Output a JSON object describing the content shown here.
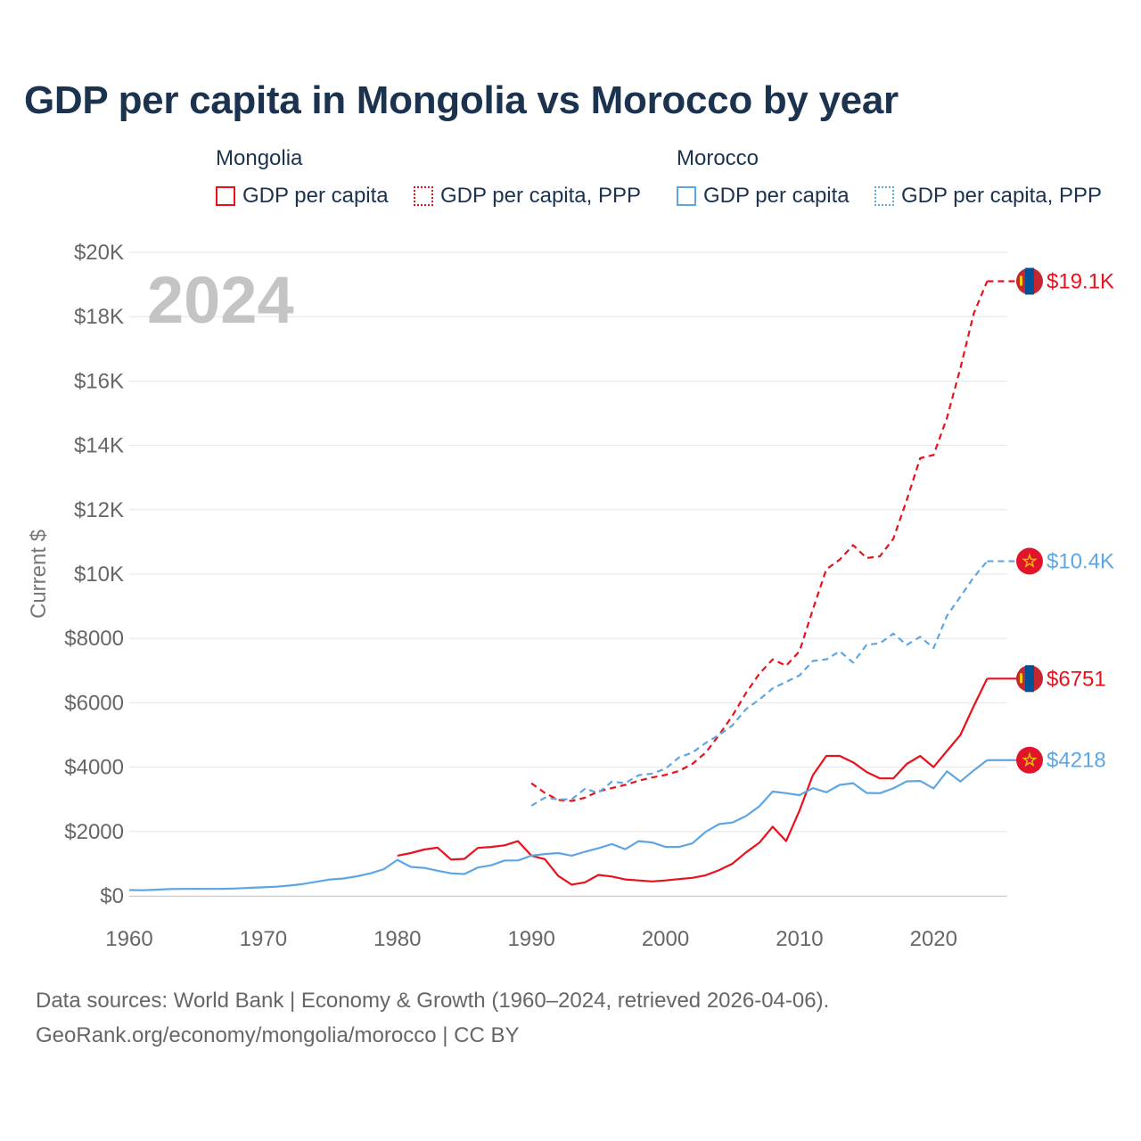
{
  "colors": {
    "mongolia": "#e8111c",
    "morocco": "#5ea6e3",
    "title": "#1c3350",
    "grid": "#e6e6e6"
  },
  "legend": {
    "mongolia": {
      "label": "Mongolia",
      "gdp": "GDP per capita",
      "ppp": "GDP per capita, PPP"
    },
    "morocco": {
      "label": "Morocco",
      "gdp": "GDP per capita",
      "ppp": "GDP per capita, PPP"
    }
  },
  "footer": {
    "line1": "Data sources: World Bank | Economy & Growth (1960–2024, retrieved 2026-04-06).",
    "line2": "GeoRank.org/economy/mongolia/morocco | CC BY"
  },
  "chart_data": {
    "type": "line",
    "title": "GDP per capita in Mongolia vs Morocco by year",
    "year_label": "2024",
    "ylabel": "Current $",
    "xlabel": "",
    "xlim": [
      1960,
      2025.5
    ],
    "ylim": [
      0,
      20000
    ],
    "x_ticks": [
      1960,
      1970,
      1980,
      1990,
      2000,
      2010,
      2020
    ],
    "y_ticks": [
      0,
      2000,
      4000,
      6000,
      8000,
      10000,
      12000,
      14000,
      16000,
      18000,
      20000
    ],
    "y_tick_labels": [
      "$0",
      "$2000",
      "$4000",
      "$6000",
      "$8000",
      "$10K",
      "$12K",
      "$14K",
      "$16K",
      "$18K",
      "$20K"
    ],
    "grid": true,
    "series": [
      {
        "name": "Mongolia GDP per capita, PPP",
        "country": "mongolia",
        "dashed": true,
        "end_label": "$19.1K",
        "x": [
          1990,
          1991,
          1992,
          1993,
          1994,
          1995,
          1996,
          1997,
          1998,
          1999,
          2000,
          2001,
          2002,
          2003,
          2004,
          2005,
          2006,
          2007,
          2008,
          2009,
          2010,
          2011,
          2012,
          2013,
          2014,
          2015,
          2016,
          2017,
          2018,
          2019,
          2020,
          2021,
          2022,
          2023,
          2024
        ],
        "values": [
          3500,
          3200,
          2980,
          2950,
          3050,
          3250,
          3350,
          3450,
          3580,
          3680,
          3760,
          3880,
          4100,
          4450,
          5000,
          5600,
          6300,
          6900,
          7350,
          7150,
          7600,
          8900,
          10150,
          10450,
          10900,
          10500,
          10550,
          11100,
          12300,
          13600,
          13700,
          14850,
          16400,
          18100,
          19100
        ]
      },
      {
        "name": "Morocco GDP per capita, PPP",
        "country": "morocco",
        "dashed": true,
        "end_label": "$10.4K",
        "x": [
          1990,
          1991,
          1992,
          1993,
          1994,
          1995,
          1996,
          1997,
          1998,
          1999,
          2000,
          2001,
          2002,
          2003,
          2004,
          2005,
          2006,
          2007,
          2008,
          2009,
          2010,
          2011,
          2012,
          2013,
          2014,
          2015,
          2016,
          2017,
          2018,
          2019,
          2020,
          2021,
          2022,
          2023,
          2024
        ],
        "values": [
          2800,
          3050,
          3000,
          3000,
          3330,
          3200,
          3550,
          3500,
          3750,
          3800,
          3950,
          4300,
          4450,
          4750,
          5000,
          5300,
          5800,
          6100,
          6450,
          6650,
          6850,
          7300,
          7350,
          7600,
          7250,
          7800,
          7850,
          8150,
          7800,
          8050,
          7700,
          8700,
          9300,
          9900,
          10400
        ]
      },
      {
        "name": "Mongolia GDP per capita",
        "country": "mongolia",
        "dashed": false,
        "end_label": "$6751",
        "x": [
          1980,
          1981,
          1982,
          1983,
          1984,
          1985,
          1986,
          1987,
          1988,
          1989,
          1990,
          1991,
          1992,
          1993,
          1994,
          1995,
          1996,
          1997,
          1998,
          1999,
          2000,
          2001,
          2002,
          2003,
          2004,
          2005,
          2006,
          2007,
          2008,
          2009,
          2010,
          2011,
          2012,
          2013,
          2014,
          2015,
          2016,
          2017,
          2018,
          2019,
          2020,
          2021,
          2022,
          2023,
          2024
        ],
        "values": [
          1250,
          1330,
          1440,
          1500,
          1130,
          1150,
          1490,
          1520,
          1570,
          1700,
          1250,
          1140,
          620,
          350,
          420,
          650,
          600,
          510,
          480,
          450,
          480,
          520,
          560,
          640,
          800,
          1000,
          1350,
          1650,
          2150,
          1700,
          2650,
          3750,
          4350,
          4350,
          4150,
          3850,
          3650,
          3650,
          4100,
          4350,
          4000,
          4500,
          5000,
          5900,
          6751
        ]
      },
      {
        "name": "Morocco GDP per capita",
        "country": "morocco",
        "dashed": false,
        "end_label": "$4218",
        "x": [
          1960,
          1961,
          1962,
          1963,
          1964,
          1965,
          1966,
          1967,
          1968,
          1969,
          1970,
          1971,
          1972,
          1973,
          1974,
          1975,
          1976,
          1977,
          1978,
          1979,
          1980,
          1981,
          1982,
          1983,
          1984,
          1985,
          1986,
          1987,
          1988,
          1989,
          1990,
          1991,
          1992,
          1993,
          1994,
          1995,
          1996,
          1997,
          1998,
          1999,
          2000,
          2001,
          2002,
          2003,
          2004,
          2005,
          2006,
          2007,
          2008,
          2009,
          2010,
          2011,
          2012,
          2013,
          2014,
          2015,
          2016,
          2017,
          2018,
          2019,
          2020,
          2021,
          2022,
          2023,
          2024
        ],
        "values": [
          180,
          175,
          190,
          210,
          215,
          220,
          215,
          220,
          230,
          250,
          265,
          285,
          320,
          370,
          440,
          510,
          540,
          610,
          700,
          830,
          1120,
          900,
          870,
          780,
          700,
          680,
          880,
          950,
          1100,
          1100,
          1250,
          1300,
          1330,
          1250,
          1370,
          1480,
          1610,
          1450,
          1700,
          1660,
          1520,
          1520,
          1630,
          1990,
          2230,
          2280,
          2480,
          2780,
          3240,
          3190,
          3130,
          3350,
          3220,
          3450,
          3500,
          3200,
          3190,
          3340,
          3560,
          3570,
          3340,
          3870,
          3550,
          3900,
          4218
        ]
      }
    ]
  }
}
